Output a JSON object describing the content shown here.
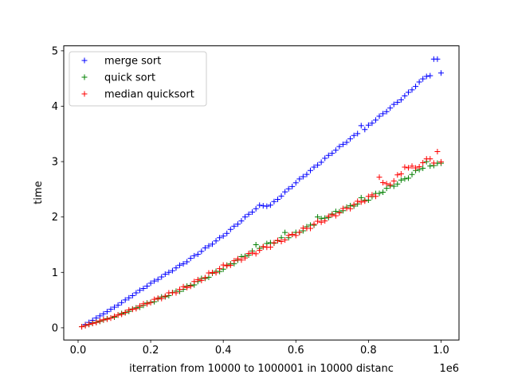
{
  "chart_data": {
    "type": "scatter",
    "marker": "+",
    "xlabel": "iterration from 10000 to 1000001 in 10000 distanc",
    "ylabel": "time",
    "x_offset_label": "1e6",
    "x_unit_scale": 1000000,
    "xlim": [
      -0.0395,
      1.0495
    ],
    "ylim": [
      -0.22,
      5.09
    ],
    "x_ticks": [
      0.0,
      0.2,
      0.4,
      0.6,
      0.8,
      1.0
    ],
    "x_tick_labels": [
      "0.0",
      "0.2",
      "0.4",
      "0.6",
      "0.8",
      "1.0"
    ],
    "y_ticks": [
      0,
      1,
      2,
      3,
      4,
      5
    ],
    "y_tick_labels": [
      "0",
      "1",
      "2",
      "3",
      "4",
      "5"
    ],
    "grid": false,
    "legend_position": "upper-left",
    "series": [
      {
        "name": "merge sort",
        "color": "#0000ff",
        "anchors": [
          [
            0.01,
            0.02
          ],
          [
            0.1,
            0.37
          ],
          [
            0.2,
            0.8
          ],
          [
            0.3,
            1.2
          ],
          [
            0.4,
            1.66
          ],
          [
            0.48,
            2.1
          ],
          [
            0.5,
            2.2
          ],
          [
            0.53,
            2.21
          ],
          [
            0.6,
            2.62
          ],
          [
            0.7,
            3.16
          ],
          [
            0.78,
            3.56
          ],
          [
            0.8,
            3.65
          ],
          [
            0.9,
            4.18
          ],
          [
            0.96,
            4.55
          ],
          [
            1.0,
            4.75
          ]
        ],
        "overrides": {
          "77": 3.65,
          "78": 3.58,
          "96": 4.55,
          "97": 4.85,
          "98": 4.85,
          "99": 4.6
        },
        "jitter": 0.012
      },
      {
        "name": "quick sort",
        "color": "#008000",
        "anchors": [
          [
            0.01,
            0.02
          ],
          [
            0.1,
            0.2
          ],
          [
            0.2,
            0.46
          ],
          [
            0.3,
            0.73
          ],
          [
            0.4,
            1.07
          ],
          [
            0.5,
            1.45
          ],
          [
            0.6,
            1.7
          ],
          [
            0.7,
            2.05
          ],
          [
            0.8,
            2.33
          ],
          [
            0.9,
            2.68
          ],
          [
            0.96,
            2.95
          ],
          [
            1.0,
            2.95
          ]
        ],
        "overrides": {
          "48": 1.5,
          "56": 1.72,
          "65": 2.0,
          "77": 2.35,
          "95": 3.0,
          "96": 2.92,
          "97": 2.93,
          "98": 2.97
        },
        "jitter": 0.025
      },
      {
        "name": "median quicksort",
        "color": "#ff0000",
        "anchors": [
          [
            0.01,
            0.02
          ],
          [
            0.1,
            0.2
          ],
          [
            0.2,
            0.47
          ],
          [
            0.3,
            0.74
          ],
          [
            0.4,
            1.1
          ],
          [
            0.5,
            1.4
          ],
          [
            0.6,
            1.7
          ],
          [
            0.7,
            2.02
          ],
          [
            0.8,
            2.35
          ],
          [
            0.82,
            2.4
          ],
          [
            0.86,
            2.6
          ],
          [
            0.9,
            2.85
          ],
          [
            0.95,
            2.95
          ],
          [
            1.0,
            3.0
          ]
        ],
        "overrides": {
          "82": 2.72,
          "83": 2.62,
          "84": 2.6,
          "85": 2.58,
          "86": 2.65,
          "89": 2.9,
          "95": 3.05,
          "96": 3.05,
          "98": 3.18
        },
        "jitter": 0.035
      }
    ],
    "n_points": 100,
    "x_start": 0.01,
    "x_step": 0.01
  }
}
